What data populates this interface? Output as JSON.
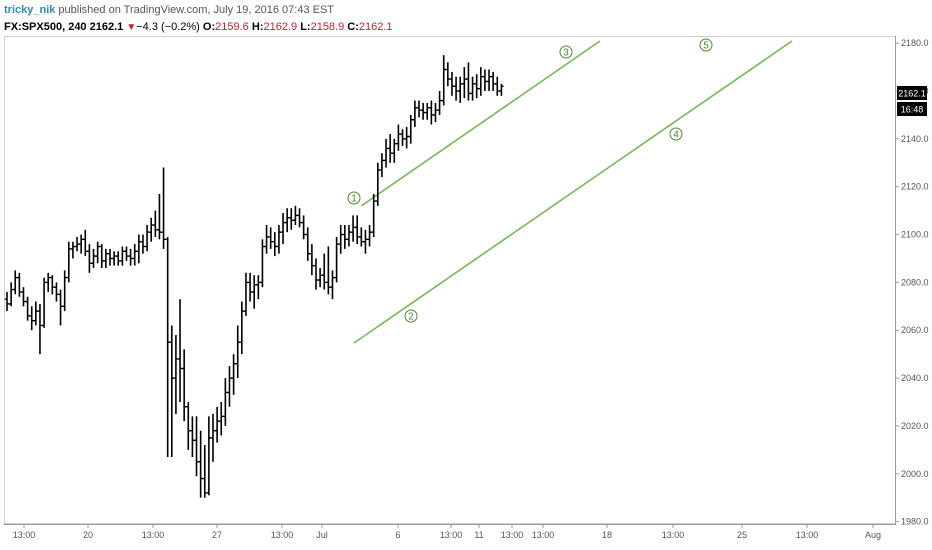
{
  "header": {
    "author": "tricky_nik",
    "published": " published on TradingView.com, July 19, 2016 07:43 EST",
    "symbol": "FX:SPX500, 240",
    "last": "2162.1",
    "change": "−4.3 (−0.2%)",
    "o_label": "O:",
    "o_value": "2159.6",
    "h_label": "H:",
    "h_value": "2162.9",
    "l_label": "L:",
    "l_value": "2158.9",
    "c_label": "C:",
    "c_value": "2162.1"
  },
  "price_badge": {
    "price": "2162.1",
    "time": "16:48"
  },
  "colors": {
    "bars": "#000000",
    "channel": "#76b852",
    "badge": "#000000",
    "down": "#c8202a"
  },
  "chart_data": {
    "type": "ohlc",
    "y_ticks": [
      "1980.0",
      "2000.0",
      "2020.0",
      "2040.0",
      "2060.0",
      "2080.0",
      "2100.0",
      "2120.0",
      "2140.0",
      "2160.0",
      "2180.0"
    ],
    "ylim": [
      1979,
      2183
    ],
    "x_ticks": [
      "13:00",
      "20",
      "13:00",
      "27",
      "13:00",
      "Jul",
      "6",
      "13:00",
      "11",
      "13:00",
      "13:00",
      "18",
      "13:00",
      "25",
      "13:00",
      "Aug"
    ],
    "bars": [
      {
        "o": 2073,
        "h": 2076,
        "l": 2068,
        "c": 2071
      },
      {
        "o": 2071,
        "h": 2080,
        "l": 2070,
        "c": 2077
      },
      {
        "o": 2077,
        "h": 2085,
        "l": 2075,
        "c": 2082
      },
      {
        "o": 2082,
        "h": 2084,
        "l": 2074,
        "c": 2076
      },
      {
        "o": 2076,
        "h": 2078,
        "l": 2070,
        "c": 2072
      },
      {
        "o": 2072,
        "h": 2074,
        "l": 2064,
        "c": 2066
      },
      {
        "o": 2066,
        "h": 2070,
        "l": 2060,
        "c": 2064
      },
      {
        "o": 2064,
        "h": 2072,
        "l": 2062,
        "c": 2068
      },
      {
        "o": 2068,
        "h": 2071,
        "l": 2050,
        "c": 2062
      },
      {
        "o": 2062,
        "h": 2082,
        "l": 2061,
        "c": 2080
      },
      {
        "o": 2080,
        "h": 2084,
        "l": 2076,
        "c": 2082
      },
      {
        "o": 2082,
        "h": 2083,
        "l": 2075,
        "c": 2078
      },
      {
        "o": 2078,
        "h": 2080,
        "l": 2072,
        "c": 2075
      },
      {
        "o": 2075,
        "h": 2077,
        "l": 2062,
        "c": 2070
      },
      {
        "o": 2070,
        "h": 2085,
        "l": 2068,
        "c": 2082
      },
      {
        "o": 2082,
        "h": 2097,
        "l": 2080,
        "c": 2094
      },
      {
        "o": 2094,
        "h": 2097,
        "l": 2090,
        "c": 2095
      },
      {
        "o": 2095,
        "h": 2099,
        "l": 2093,
        "c": 2096
      },
      {
        "o": 2096,
        "h": 2100,
        "l": 2092,
        "c": 2098
      },
      {
        "o": 2098,
        "h": 2102,
        "l": 2091,
        "c": 2093
      },
      {
        "o": 2093,
        "h": 2096,
        "l": 2084,
        "c": 2088
      },
      {
        "o": 2088,
        "h": 2094,
        "l": 2086,
        "c": 2091
      },
      {
        "o": 2091,
        "h": 2097,
        "l": 2088,
        "c": 2095
      },
      {
        "o": 2095,
        "h": 2096,
        "l": 2086,
        "c": 2089
      },
      {
        "o": 2089,
        "h": 2094,
        "l": 2086,
        "c": 2092
      },
      {
        "o": 2092,
        "h": 2094,
        "l": 2087,
        "c": 2090
      },
      {
        "o": 2090,
        "h": 2093,
        "l": 2087,
        "c": 2091
      },
      {
        "o": 2091,
        "h": 2093,
        "l": 2087,
        "c": 2089
      },
      {
        "o": 2089,
        "h": 2095,
        "l": 2087,
        "c": 2093
      },
      {
        "o": 2093,
        "h": 2095,
        "l": 2089,
        "c": 2091
      },
      {
        "o": 2091,
        "h": 2094,
        "l": 2087,
        "c": 2090
      },
      {
        "o": 2090,
        "h": 2096,
        "l": 2087,
        "c": 2093
      },
      {
        "o": 2093,
        "h": 2100,
        "l": 2088,
        "c": 2097
      },
      {
        "o": 2097,
        "h": 2100,
        "l": 2092,
        "c": 2095
      },
      {
        "o": 2095,
        "h": 2104,
        "l": 2093,
        "c": 2101
      },
      {
        "o": 2101,
        "h": 2107,
        "l": 2097,
        "c": 2104
      },
      {
        "o": 2104,
        "h": 2110,
        "l": 2099,
        "c": 2102
      },
      {
        "o": 2102,
        "h": 2117,
        "l": 2098,
        "c": 2101
      },
      {
        "o": 2101,
        "h": 2128,
        "l": 2094,
        "c": 2098
      },
      {
        "o": 2098,
        "h": 2099,
        "l": 2007,
        "c": 2055
      },
      {
        "o": 2055,
        "h": 2062,
        "l": 2007,
        "c": 2040
      },
      {
        "o": 2040,
        "h": 2058,
        "l": 2025,
        "c": 2048
      },
      {
        "o": 2048,
        "h": 2073,
        "l": 2030,
        "c": 2044
      },
      {
        "o": 2044,
        "h": 2052,
        "l": 2022,
        "c": 2028
      },
      {
        "o": 2028,
        "h": 2030,
        "l": 2010,
        "c": 2018
      },
      {
        "o": 2018,
        "h": 2024,
        "l": 2007,
        "c": 2014
      },
      {
        "o": 2014,
        "h": 2024,
        "l": 1999,
        "c": 2005
      },
      {
        "o": 2005,
        "h": 2018,
        "l": 1990,
        "c": 1998
      },
      {
        "o": 1998,
        "h": 2012,
        "l": 1990,
        "c": 1992
      },
      {
        "o": 1992,
        "h": 2024,
        "l": 1991,
        "c": 2015
      },
      {
        "o": 2015,
        "h": 2025,
        "l": 2005,
        "c": 2018
      },
      {
        "o": 2018,
        "h": 2028,
        "l": 2013,
        "c": 2022
      },
      {
        "o": 2022,
        "h": 2030,
        "l": 2016,
        "c": 2024
      },
      {
        "o": 2024,
        "h": 2040,
        "l": 2020,
        "c": 2034
      },
      {
        "o": 2034,
        "h": 2045,
        "l": 2028,
        "c": 2040
      },
      {
        "o": 2040,
        "h": 2050,
        "l": 2033,
        "c": 2046
      },
      {
        "o": 2046,
        "h": 2062,
        "l": 2040,
        "c": 2055
      },
      {
        "o": 2055,
        "h": 2072,
        "l": 2050,
        "c": 2068
      },
      {
        "o": 2068,
        "h": 2084,
        "l": 2066,
        "c": 2080
      },
      {
        "o": 2080,
        "h": 2084,
        "l": 2072,
        "c": 2076
      },
      {
        "o": 2076,
        "h": 2083,
        "l": 2069,
        "c": 2079
      },
      {
        "o": 2079,
        "h": 2083,
        "l": 2073,
        "c": 2080
      },
      {
        "o": 2080,
        "h": 2098,
        "l": 2078,
        "c": 2095
      },
      {
        "o": 2095,
        "h": 2104,
        "l": 2092,
        "c": 2099
      },
      {
        "o": 2099,
        "h": 2103,
        "l": 2094,
        "c": 2097
      },
      {
        "o": 2097,
        "h": 2101,
        "l": 2091,
        "c": 2095
      },
      {
        "o": 2095,
        "h": 2104,
        "l": 2092,
        "c": 2101
      },
      {
        "o": 2101,
        "h": 2109,
        "l": 2096,
        "c": 2105
      },
      {
        "o": 2105,
        "h": 2111,
        "l": 2101,
        "c": 2107
      },
      {
        "o": 2107,
        "h": 2111,
        "l": 2102,
        "c": 2106
      },
      {
        "o": 2106,
        "h": 2112,
        "l": 2104,
        "c": 2108
      },
      {
        "o": 2108,
        "h": 2111,
        "l": 2103,
        "c": 2105
      },
      {
        "o": 2105,
        "h": 2108,
        "l": 2098,
        "c": 2100
      },
      {
        "o": 2100,
        "h": 2103,
        "l": 2089,
        "c": 2092
      },
      {
        "o": 2092,
        "h": 2096,
        "l": 2083,
        "c": 2087
      },
      {
        "o": 2087,
        "h": 2090,
        "l": 2077,
        "c": 2081
      },
      {
        "o": 2081,
        "h": 2086,
        "l": 2078,
        "c": 2083
      },
      {
        "o": 2083,
        "h": 2092,
        "l": 2077,
        "c": 2080
      },
      {
        "o": 2080,
        "h": 2095,
        "l": 2075,
        "c": 2078
      },
      {
        "o": 2078,
        "h": 2085,
        "l": 2073,
        "c": 2082
      },
      {
        "o": 2082,
        "h": 2099,
        "l": 2080,
        "c": 2096
      },
      {
        "o": 2096,
        "h": 2104,
        "l": 2092,
        "c": 2100
      },
      {
        "o": 2100,
        "h": 2104,
        "l": 2094,
        "c": 2098
      },
      {
        "o": 2098,
        "h": 2104,
        "l": 2095,
        "c": 2101
      },
      {
        "o": 2101,
        "h": 2108,
        "l": 2097,
        "c": 2103
      },
      {
        "o": 2103,
        "h": 2108,
        "l": 2096,
        "c": 2099
      },
      {
        "o": 2099,
        "h": 2103,
        "l": 2095,
        "c": 2097
      },
      {
        "o": 2097,
        "h": 2102,
        "l": 2092,
        "c": 2098
      },
      {
        "o": 2098,
        "h": 2104,
        "l": 2095,
        "c": 2101
      },
      {
        "o": 2101,
        "h": 2117,
        "l": 2099,
        "c": 2114
      },
      {
        "o": 2114,
        "h": 2130,
        "l": 2112,
        "c": 2127
      },
      {
        "o": 2127,
        "h": 2134,
        "l": 2124,
        "c": 2131
      },
      {
        "o": 2131,
        "h": 2140,
        "l": 2128,
        "c": 2136
      },
      {
        "o": 2136,
        "h": 2142,
        "l": 2130,
        "c": 2134
      },
      {
        "o": 2134,
        "h": 2140,
        "l": 2130,
        "c": 2138
      },
      {
        "o": 2138,
        "h": 2146,
        "l": 2135,
        "c": 2142
      },
      {
        "o": 2142,
        "h": 2144,
        "l": 2137,
        "c": 2140
      },
      {
        "o": 2140,
        "h": 2145,
        "l": 2136,
        "c": 2141
      },
      {
        "o": 2141,
        "h": 2150,
        "l": 2138,
        "c": 2148
      },
      {
        "o": 2148,
        "h": 2156,
        "l": 2145,
        "c": 2153
      },
      {
        "o": 2153,
        "h": 2156,
        "l": 2149,
        "c": 2152
      },
      {
        "o": 2152,
        "h": 2155,
        "l": 2148,
        "c": 2151
      },
      {
        "o": 2151,
        "h": 2155,
        "l": 2148,
        "c": 2153
      },
      {
        "o": 2153,
        "h": 2156,
        "l": 2146,
        "c": 2150
      },
      {
        "o": 2150,
        "h": 2155,
        "l": 2147,
        "c": 2152
      },
      {
        "o": 2152,
        "h": 2160,
        "l": 2150,
        "c": 2156
      },
      {
        "o": 2156,
        "h": 2175,
        "l": 2154,
        "c": 2169
      },
      {
        "o": 2169,
        "h": 2172,
        "l": 2162,
        "c": 2165
      },
      {
        "o": 2165,
        "h": 2168,
        "l": 2158,
        "c": 2162
      },
      {
        "o": 2162,
        "h": 2166,
        "l": 2156,
        "c": 2160
      },
      {
        "o": 2160,
        "h": 2166,
        "l": 2155,
        "c": 2163
      },
      {
        "o": 2163,
        "h": 2170,
        "l": 2157,
        "c": 2165
      },
      {
        "o": 2165,
        "h": 2172,
        "l": 2156,
        "c": 2159
      },
      {
        "o": 2159,
        "h": 2166,
        "l": 2156,
        "c": 2163
      },
      {
        "o": 2163,
        "h": 2167,
        "l": 2157,
        "c": 2161
      },
      {
        "o": 2161,
        "h": 2170,
        "l": 2158,
        "c": 2166
      },
      {
        "o": 2166,
        "h": 2169,
        "l": 2160,
        "c": 2164
      },
      {
        "o": 2164,
        "h": 2169,
        "l": 2160,
        "c": 2166
      },
      {
        "o": 2166,
        "h": 2168,
        "l": 2160,
        "c": 2163
      },
      {
        "o": 2163,
        "h": 2166,
        "l": 2158,
        "c": 2160
      },
      {
        "o": 2160,
        "h": 2163,
        "l": 2158,
        "c": 2162
      }
    ],
    "channel": {
      "upper": {
        "from_bar": 86,
        "from_price": 2112,
        "to_bar": 110,
        "to_price": 2183
      },
      "lower": {
        "from_bar": 85,
        "from_price": 2057,
        "to_bar": 137,
        "to_price": 2183
      }
    },
    "wave_labels": [
      {
        "text": "1",
        "bar": 85.5,
        "price": 2119
      },
      {
        "text": "2",
        "bar": 98.5,
        "price": 2063
      },
      {
        "text": "3",
        "bar": 135.5,
        "price": 2179
      },
      {
        "text": "4",
        "bar": 162,
        "price": 2142
      },
      {
        "text": "5",
        "bar": 169.5,
        "price": 2182
      }
    ]
  }
}
